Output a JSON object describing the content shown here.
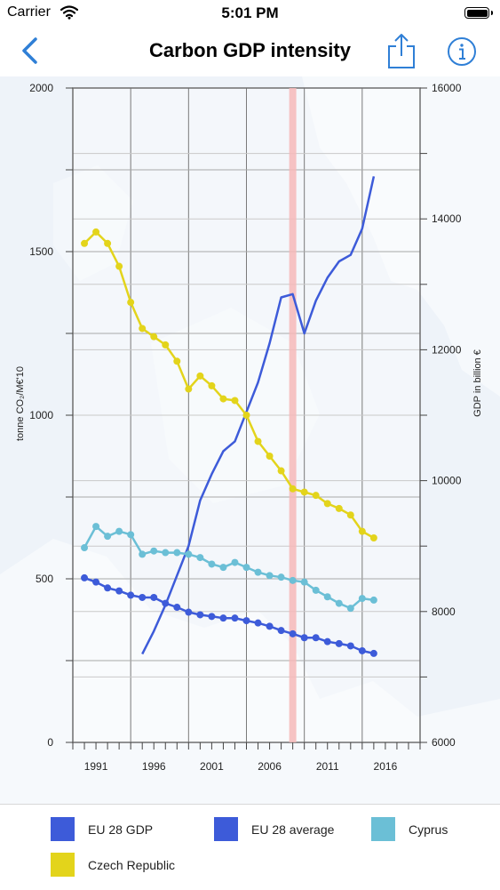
{
  "status_bar": {
    "carrier": "Carrier",
    "time": "5:01 PM"
  },
  "navbar": {
    "title": "Carbon GDP intensity"
  },
  "icons": {
    "back": "chevron-left-icon",
    "share": "share-icon",
    "info": "info-circle-icon",
    "wifi": "wifi-icon",
    "battery": "battery-icon"
  },
  "colors": {
    "accent": "#2f7fd6",
    "eu_gdp": "#3d5bd9",
    "eu_avg": "#3d5bd9",
    "cyprus": "#6bbfd6",
    "czech": "#e3d41b",
    "highlight": "#f6b9b9"
  },
  "chart_data": {
    "type": "line",
    "y_left": {
      "label": "tonne CO₂/M€'10",
      "ylim": [
        0,
        2000
      ],
      "ticks": [
        0,
        500,
        1000,
        1500,
        2000
      ]
    },
    "y_right": {
      "label": "GDP in billion €",
      "ylim": [
        6000,
        16000
      ],
      "ticks": [
        6000,
        8000,
        10000,
        12000,
        14000,
        16000
      ]
    },
    "x_axis": {
      "range": [
        1989,
        2019
      ],
      "ticks": [
        1991,
        1996,
        2001,
        2006,
        2011,
        2016
      ]
    },
    "grid": true,
    "highlight_year": 2008,
    "x": [
      1990,
      1991,
      1992,
      1993,
      1994,
      1995,
      1996,
      1997,
      1998,
      1999,
      2000,
      2001,
      2002,
      2003,
      2004,
      2005,
      2006,
      2007,
      2008,
      2009,
      2010,
      2011,
      2012,
      2013,
      2014,
      2015
    ],
    "series": [
      {
        "name": "EU 28 GDP",
        "axis": "right",
        "show_markers": false,
        "x": [
          1995,
          1996,
          1997,
          1998,
          1999,
          2000,
          2001,
          2002,
          2003,
          2004,
          2005,
          2006,
          2007,
          2008,
          2009,
          2010,
          2011,
          2012,
          2013,
          2014,
          2015
        ],
        "values": [
          7350,
          7700,
          8100,
          8550,
          9000,
          9700,
          10100,
          10450,
          10600,
          11050,
          11500,
          12100,
          12800,
          12850,
          12250,
          12750,
          13100,
          13350,
          13450,
          13850,
          14650
        ]
      },
      {
        "name": "EU 28 average",
        "axis": "left",
        "show_markers": true,
        "x": [
          1990,
          1991,
          1992,
          1993,
          1994,
          1995,
          1996,
          1997,
          1998,
          1999,
          2000,
          2001,
          2002,
          2003,
          2004,
          2005,
          2006,
          2007,
          2008,
          2009,
          2010,
          2011,
          2012,
          2013,
          2014,
          2015
        ],
        "values": [
          503,
          490,
          472,
          463,
          450,
          443,
          443,
          425,
          413,
          398,
          390,
          385,
          380,
          380,
          372,
          365,
          355,
          342,
          332,
          320,
          320,
          308,
          302,
          295,
          280,
          272
        ]
      },
      {
        "name": "Cyprus",
        "axis": "left",
        "show_markers": true,
        "x": [
          1990,
          1991,
          1992,
          1993,
          1994,
          1995,
          1996,
          1997,
          1998,
          1999,
          2000,
          2001,
          2002,
          2003,
          2004,
          2005,
          2006,
          2007,
          2008,
          2009,
          2010,
          2011,
          2012,
          2013,
          2014,
          2015
        ],
        "values": [
          595,
          660,
          630,
          645,
          635,
          575,
          585,
          580,
          580,
          575,
          565,
          545,
          535,
          550,
          535,
          520,
          510,
          505,
          495,
          490,
          465,
          445,
          425,
          410,
          440,
          435
        ]
      },
      {
        "name": "Czech Republic",
        "axis": "left",
        "show_markers": true,
        "x": [
          1990,
          1991,
          1992,
          1993,
          1994,
          1995,
          1996,
          1997,
          1998,
          1999,
          2000,
          2001,
          2002,
          2003,
          2004,
          2005,
          2006,
          2007,
          2008,
          2009,
          2010,
          2011,
          2012,
          2013,
          2014,
          2015
        ],
        "values": [
          1525,
          1560,
          1525,
          1455,
          1345,
          1265,
          1240,
          1215,
          1165,
          1080,
          1120,
          1090,
          1050,
          1045,
          1000,
          920,
          875,
          830,
          775,
          765,
          755,
          730,
          715,
          695,
          645,
          625
        ]
      }
    ]
  },
  "legend": [
    {
      "name": "EU 28 GDP",
      "color": "#3d5bd9"
    },
    {
      "name": "EU 28 average",
      "color": "#3d5bd9"
    },
    {
      "name": "Cyprus",
      "color": "#6bbfd6"
    },
    {
      "name": "Czech Republic",
      "color": "#e3d41b"
    }
  ]
}
